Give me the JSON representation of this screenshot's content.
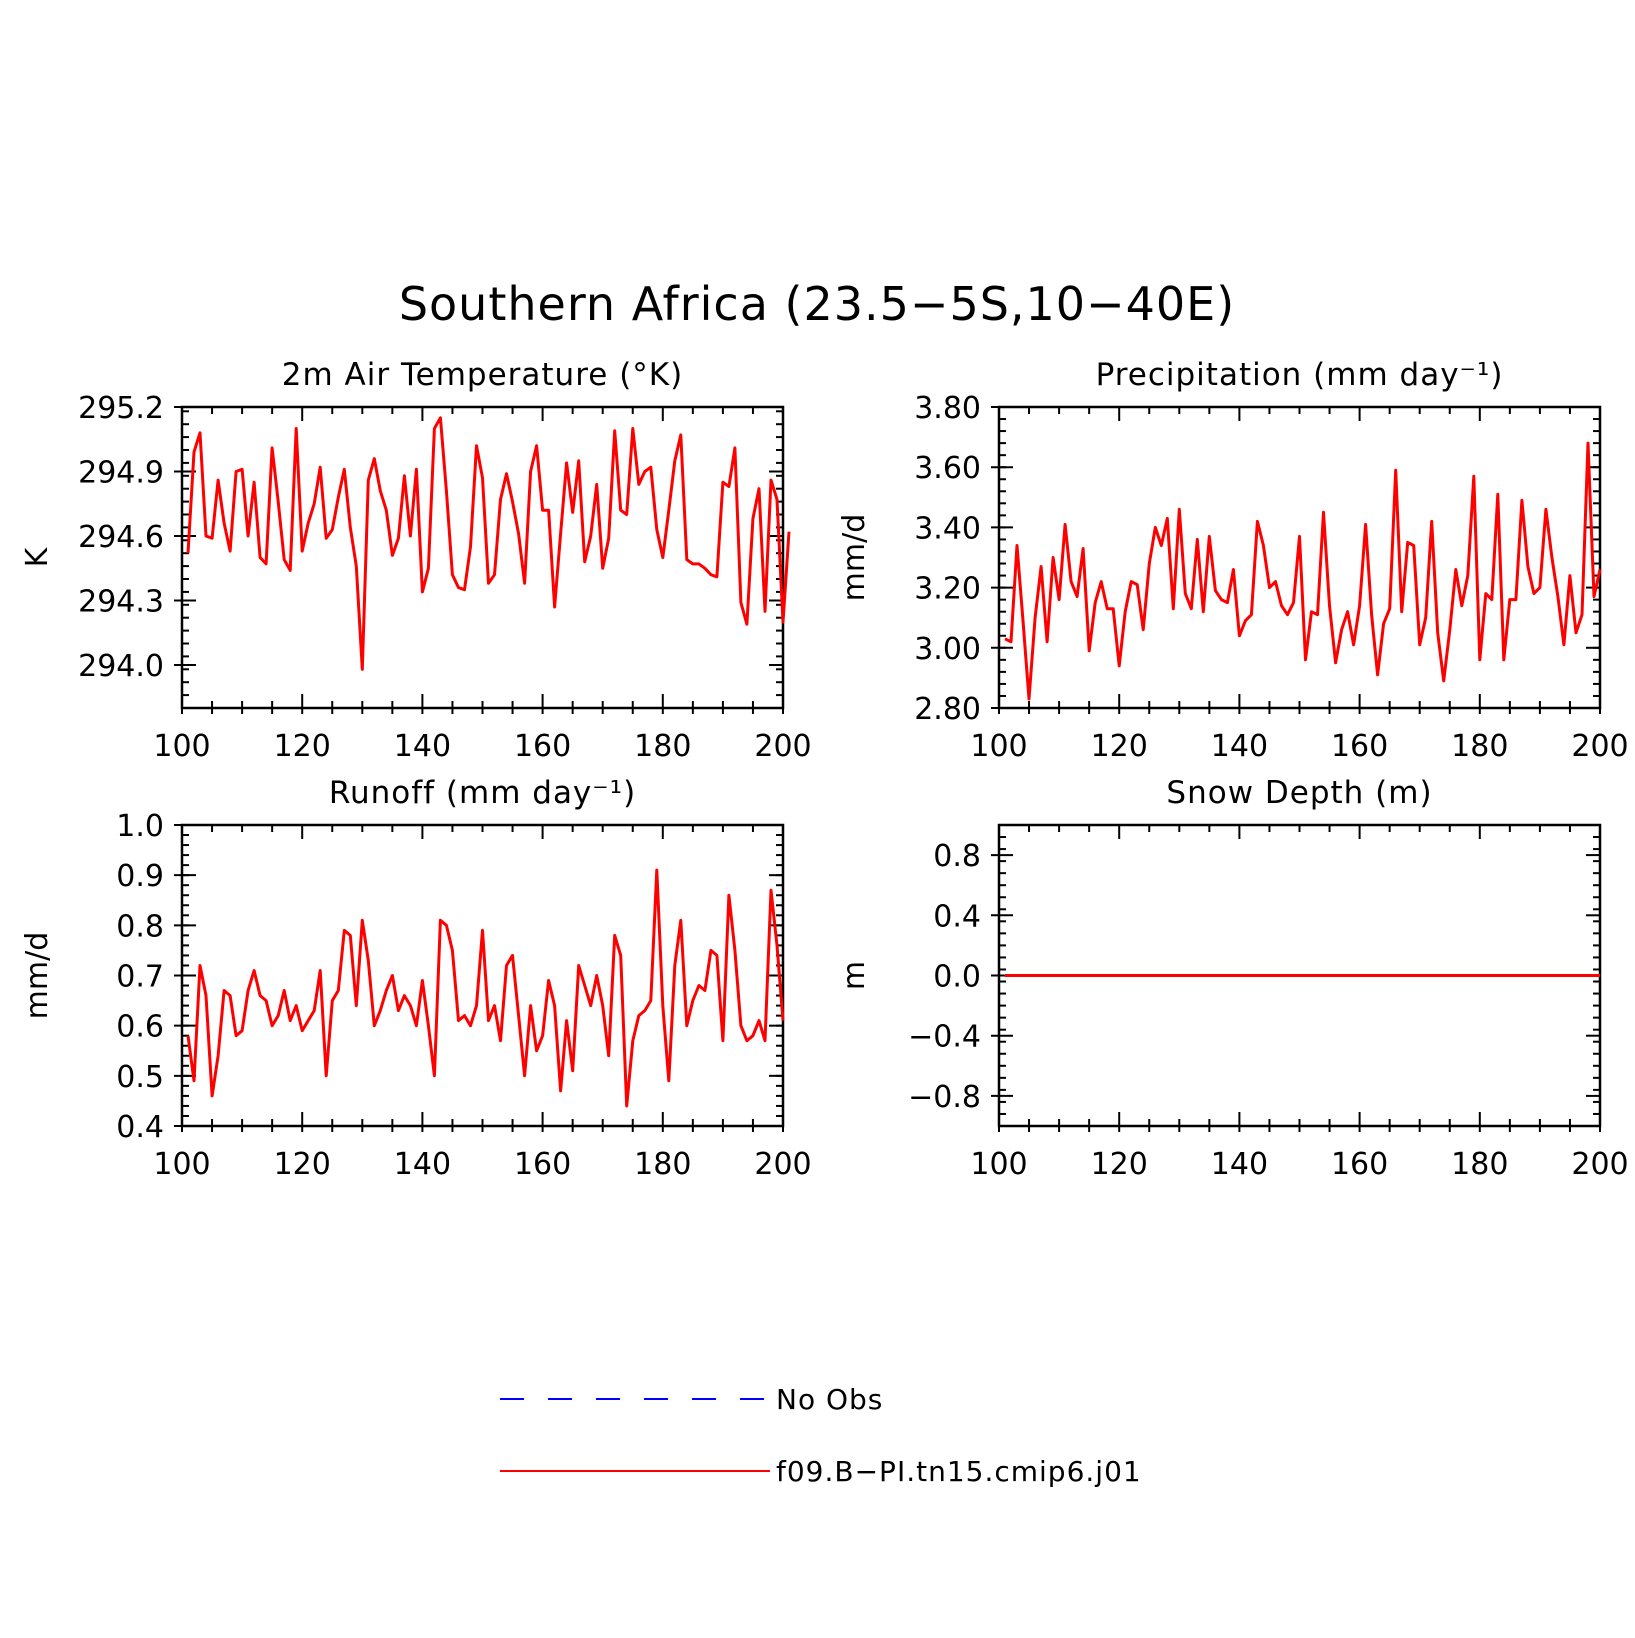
{
  "title": "Southern Africa (23.5−5S,10−40E)",
  "colors": {
    "model": "#ff0000",
    "obs": "#0000ff",
    "axis": "#000000"
  },
  "legend": {
    "entries": [
      {
        "label": "No Obs",
        "style": "dashed",
        "color": "#0000ff"
      },
      {
        "label": "f09.B−PI.tn15.cmip6.j01",
        "style": "solid",
        "color": "#ff0000"
      }
    ]
  },
  "chart_data": [
    {
      "type": "line",
      "title": "2m Air Temperature (°K)",
      "ylabel": "K",
      "xlim": [
        100,
        200
      ],
      "ylim": [
        293.8,
        295.2
      ],
      "xticks": [
        "100",
        "120",
        "140",
        "160",
        "180",
        "200"
      ],
      "yticks": [
        "294.0",
        "294.3",
        "294.6",
        "294.9",
        "295.2"
      ],
      "series": [
        {
          "name": "f09.B−PI.tn15.cmip6.j01",
          "x_start": 101,
          "x_step": 1,
          "values": [
            294.52,
            294.99,
            295.08,
            294.6,
            294.59,
            294.86,
            294.66,
            294.53,
            294.9,
            294.91,
            294.6,
            294.85,
            294.5,
            294.47,
            295.01,
            294.76,
            294.49,
            294.44,
            295.1,
            294.53,
            294.66,
            294.75,
            294.92,
            294.59,
            294.63,
            294.78,
            294.91,
            294.64,
            294.46,
            293.98,
            294.86,
            294.96,
            294.81,
            294.72,
            294.51,
            294.59,
            294.88,
            294.6,
            294.91,
            294.34,
            294.45,
            295.1,
            295.15,
            294.81,
            294.42,
            294.36,
            294.35,
            294.55,
            295.02,
            294.87,
            294.38,
            294.42,
            294.77,
            294.89,
            294.76,
            294.61,
            294.38,
            294.9,
            295.02,
            294.72,
            294.72,
            294.27,
            294.61,
            294.94,
            294.71,
            294.95,
            294.48,
            294.6,
            294.84,
            294.45,
            294.59,
            295.09,
            294.72,
            294.7,
            295.1,
            294.84,
            294.9,
            294.92,
            294.63,
            294.5,
            294.72,
            294.95,
            295.07,
            294.49,
            294.47,
            294.47,
            294.45,
            294.42,
            294.41,
            294.85,
            294.83,
            295.01,
            294.29,
            294.19,
            294.68,
            294.82,
            294.25,
            294.86,
            294.77,
            294.2,
            294.62
          ]
        }
      ]
    },
    {
      "type": "line",
      "title": "Precipitation (mm day⁻¹)",
      "ylabel": "mm/d",
      "xlim": [
        100,
        200
      ],
      "ylim": [
        2.8,
        3.8
      ],
      "xticks": [
        "100",
        "120",
        "140",
        "160",
        "180",
        "200"
      ],
      "yticks": [
        "2.80",
        "3.00",
        "3.20",
        "3.40",
        "3.60",
        "3.80"
      ],
      "series": [
        {
          "name": "f09.B−PI.tn15.cmip6.j01",
          "x_start": 101,
          "x_step": 1,
          "values": [
            3.03,
            3.02,
            3.34,
            3.09,
            2.83,
            3.1,
            3.27,
            3.02,
            3.3,
            3.16,
            3.41,
            3.22,
            3.17,
            3.33,
            2.99,
            3.15,
            3.22,
            3.13,
            3.13,
            2.94,
            3.12,
            3.22,
            3.21,
            3.06,
            3.28,
            3.4,
            3.34,
            3.43,
            3.13,
            3.46,
            3.18,
            3.13,
            3.36,
            3.12,
            3.37,
            3.19,
            3.16,
            3.15,
            3.26,
            3.04,
            3.09,
            3.11,
            3.42,
            3.34,
            3.2,
            3.22,
            3.14,
            3.11,
            3.15,
            3.37,
            2.96,
            3.12,
            3.11,
            3.45,
            3.14,
            2.95,
            3.06,
            3.12,
            3.01,
            3.14,
            3.41,
            3.11,
            2.91,
            3.08,
            3.13,
            3.59,
            3.12,
            3.35,
            3.34,
            3.01,
            3.1,
            3.42,
            3.05,
            2.89,
            3.06,
            3.26,
            3.14,
            3.24,
            3.57,
            2.96,
            3.18,
            3.16,
            3.51,
            2.96,
            3.16,
            3.16,
            3.49,
            3.27,
            3.18,
            3.2,
            3.46,
            3.3,
            3.17,
            3.01,
            3.24,
            3.05,
            3.11,
            3.68,
            3.17,
            3.26
          ]
        }
      ]
    },
    {
      "type": "line",
      "title": "Runoff (mm day⁻¹)",
      "ylabel": "mm/d",
      "xlim": [
        100,
        200
      ],
      "ylim": [
        0.4,
        1.0
      ],
      "xticks": [
        "100",
        "120",
        "140",
        "160",
        "180",
        "200"
      ],
      "yticks": [
        "0.4",
        "0.5",
        "0.6",
        "0.7",
        "0.8",
        "0.9",
        "1.0"
      ],
      "series": [
        {
          "name": "f09.B−PI.tn15.cmip6.j01",
          "x_start": 101,
          "x_step": 1,
          "values": [
            0.58,
            0.49,
            0.72,
            0.66,
            0.46,
            0.54,
            0.67,
            0.66,
            0.58,
            0.59,
            0.67,
            0.71,
            0.66,
            0.65,
            0.6,
            0.62,
            0.67,
            0.61,
            0.64,
            0.59,
            0.61,
            0.63,
            0.71,
            0.5,
            0.65,
            0.67,
            0.79,
            0.78,
            0.64,
            0.81,
            0.73,
            0.6,
            0.63,
            0.67,
            0.7,
            0.63,
            0.66,
            0.64,
            0.6,
            0.69,
            0.6,
            0.5,
            0.81,
            0.8,
            0.75,
            0.61,
            0.62,
            0.6,
            0.64,
            0.79,
            0.61,
            0.64,
            0.57,
            0.72,
            0.74,
            0.62,
            0.5,
            0.64,
            0.55,
            0.58,
            0.69,
            0.64,
            0.47,
            0.61,
            0.51,
            0.72,
            0.68,
            0.64,
            0.7,
            0.64,
            0.54,
            0.78,
            0.74,
            0.44,
            0.57,
            0.62,
            0.63,
            0.65,
            0.91,
            0.64,
            0.49,
            0.72,
            0.81,
            0.6,
            0.65,
            0.68,
            0.67,
            0.75,
            0.74,
            0.57,
            0.86,
            0.75,
            0.6,
            0.57,
            0.58,
            0.61,
            0.57,
            0.87,
            0.76,
            0.61
          ]
        }
      ]
    },
    {
      "type": "line",
      "title": "Snow Depth (m)",
      "ylabel": "m",
      "xlim": [
        100,
        200
      ],
      "ylim": [
        -1.0,
        1.0
      ],
      "xticks": [
        "100",
        "120",
        "140",
        "160",
        "180",
        "200"
      ],
      "yticks": [
        "−0.8",
        "−0.4",
        "0.0",
        "0.4",
        "0.8"
      ],
      "series": [
        {
          "name": "f09.B−PI.tn15.cmip6.j01",
          "x_start": 101,
          "x_step": 1,
          "values": [
            0,
            0,
            0,
            0,
            0,
            0,
            0,
            0,
            0,
            0,
            0,
            0,
            0,
            0,
            0,
            0,
            0,
            0,
            0,
            0,
            0,
            0,
            0,
            0,
            0,
            0,
            0,
            0,
            0,
            0,
            0,
            0,
            0,
            0,
            0,
            0,
            0,
            0,
            0,
            0,
            0,
            0,
            0,
            0,
            0,
            0,
            0,
            0,
            0,
            0,
            0,
            0,
            0,
            0,
            0,
            0,
            0,
            0,
            0,
            0,
            0,
            0,
            0,
            0,
            0,
            0,
            0,
            0,
            0,
            0,
            0,
            0,
            0,
            0,
            0,
            0,
            0,
            0,
            0,
            0,
            0,
            0,
            0,
            0,
            0,
            0,
            0,
            0,
            0,
            0,
            0,
            0,
            0,
            0,
            0,
            0,
            0,
            0,
            0,
            0
          ]
        }
      ]
    }
  ]
}
